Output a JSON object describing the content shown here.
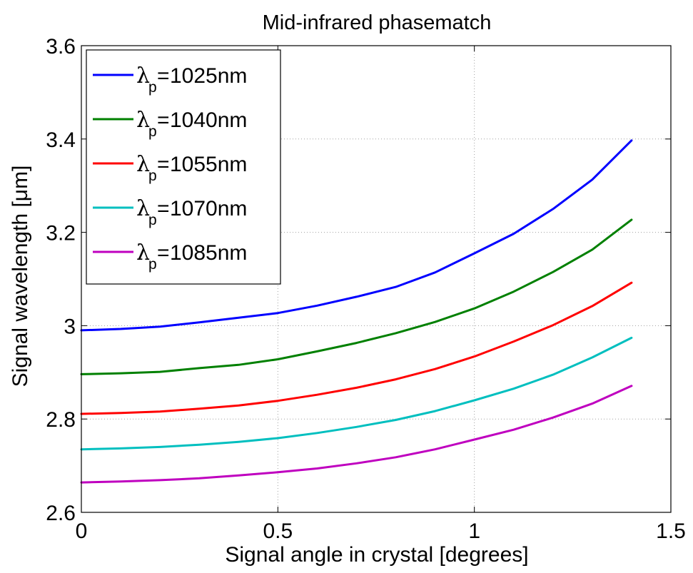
{
  "chart_data": {
    "type": "line",
    "title": "Mid-infrared phasematch",
    "xlabel": "Signal angle in crystal [degrees]",
    "ylabel": "Signal wavelength [μm]",
    "xlim": [
      0,
      1.5
    ],
    "ylim": [
      2.6,
      3.6
    ],
    "xticks": [
      "0",
      "0.5",
      "1",
      "1.5"
    ],
    "xtick_values": [
      0,
      0.5,
      1,
      1.5
    ],
    "yticks": [
      "2.6",
      "2.8",
      "3",
      "3.2",
      "3.4",
      "3.6"
    ],
    "ytick_values": [
      2.6,
      2.8,
      3.0,
      3.2,
      3.4,
      3.6
    ],
    "grid": true,
    "legend_position": "top-left",
    "x": [
      0,
      0.1,
      0.2,
      0.3,
      0.4,
      0.5,
      0.6,
      0.7,
      0.8,
      0.9,
      1.0,
      1.1,
      1.2,
      1.3,
      1.4
    ],
    "series": [
      {
        "name": "1025nm",
        "legend_symbol": "λ",
        "legend_sub": "p",
        "legend_eq": "=",
        "color": "#0000ff",
        "values": [
          2.99,
          2.993,
          2.998,
          3.007,
          3.017,
          3.027,
          3.043,
          3.062,
          3.083,
          3.114,
          3.155,
          3.197,
          3.25,
          3.313,
          3.397
        ]
      },
      {
        "name": "1040nm",
        "legend_symbol": "λ",
        "legend_sub": "p",
        "legend_eq": "=",
        "color": "#008000",
        "values": [
          2.896,
          2.898,
          2.901,
          2.909,
          2.916,
          2.928,
          2.945,
          2.963,
          2.984,
          3.008,
          3.037,
          3.073,
          3.115,
          3.163,
          3.227
        ]
      },
      {
        "name": "1055nm",
        "legend_symbol": "λ",
        "legend_sub": "p",
        "legend_eq": "=",
        "color": "#ff0000",
        "values": [
          2.811,
          2.813,
          2.816,
          2.822,
          2.829,
          2.839,
          2.852,
          2.867,
          2.885,
          2.907,
          2.934,
          2.966,
          3.001,
          3.042,
          3.092
        ]
      },
      {
        "name": "1070nm",
        "legend_symbol": "λ",
        "legend_sub": "p",
        "legend_eq": "=",
        "color": "#00bfbf",
        "values": [
          2.735,
          2.737,
          2.74,
          2.745,
          2.751,
          2.759,
          2.77,
          2.783,
          2.798,
          2.817,
          2.84,
          2.865,
          2.895,
          2.932,
          2.974
        ]
      },
      {
        "name": "1085nm",
        "legend_symbol": "λ",
        "legend_sub": "p",
        "legend_eq": "=",
        "color": "#bf00bf",
        "values": [
          2.664,
          2.666,
          2.669,
          2.673,
          2.679,
          2.686,
          2.694,
          2.705,
          2.718,
          2.735,
          2.756,
          2.777,
          2.803,
          2.833,
          2.871
        ]
      }
    ]
  }
}
